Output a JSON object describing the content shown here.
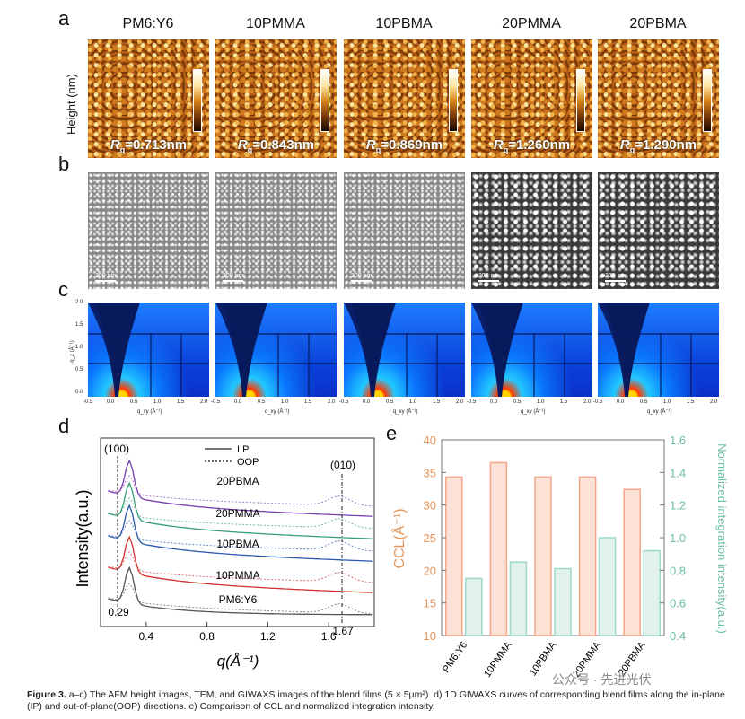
{
  "panel_a": {
    "letter": "a",
    "ylabel": "Height (nm)",
    "columns": [
      {
        "title": "PM6:Y6",
        "rq": "0.713nm"
      },
      {
        "title": "10PMMA",
        "rq": "0.843nm"
      },
      {
        "title": "10PBMA",
        "rq": "0.869nm"
      },
      {
        "title": "20PMMA",
        "rq": "1.260nm"
      },
      {
        "title": "20PBMA",
        "rq": "1.290nm"
      }
    ],
    "rq_symbol": "R",
    "rq_sub": "q",
    "rq_eq": "="
  },
  "panel_b": {
    "letter": "b",
    "scale_label": "200 nm"
  },
  "panel_c": {
    "letter": "c",
    "ylabel": "q_z (Å⁻¹)",
    "xlabel": "q_xy (Å⁻¹)",
    "yticks": [
      "2.0",
      "1.5",
      "1.0",
      "0.5",
      "0.0"
    ],
    "xticks": [
      "-0.5",
      "0.0",
      "0.5",
      "1.0",
      "1.5",
      "2.0"
    ]
  },
  "chart_data": [
    {
      "type": "line",
      "panel": "d",
      "xlabel": "q(Å⁻¹)",
      "ylabel": "Intensity(a.u.)",
      "xlim": [
        0.1,
        1.9
      ],
      "xticks": [
        "0.4",
        "0.8",
        "1.2",
        "1.6"
      ],
      "legend": [
        "I P",
        "OOP"
      ],
      "annotations": [
        "(100)",
        "(010)",
        "0.29",
        "1.67"
      ],
      "series": [
        {
          "name": "20PBMA",
          "color": "#7a3fb0"
        },
        {
          "name": "20PMMA",
          "color": "#35a070"
        },
        {
          "name": "10PBMA",
          "color": "#2a58b0"
        },
        {
          "name": "10PMMA",
          "color": "#d23030"
        },
        {
          "name": "PM6:Y6",
          "color": "#555555"
        }
      ]
    },
    {
      "type": "bar",
      "panel": "e",
      "categories": [
        "PM6:Y6",
        "10PMMA",
        "10PBMA",
        "20PMMA",
        "20PBMA"
      ],
      "series": [
        {
          "name": "CCL",
          "axis": "left",
          "color": "#f4a58a",
          "values": [
            34.3,
            36.5,
            34.3,
            34.3,
            32.4
          ]
        },
        {
          "name": "Normalized integration intensity",
          "axis": "right",
          "color": "#9fd8c8",
          "values": [
            0.75,
            0.85,
            0.81,
            1.0,
            0.92
          ]
        }
      ],
      "ylabel": "CCL(Å⁻¹)",
      "ylabel_right": "Normalized integration intensity(a.u.)",
      "ylim": [
        10,
        40
      ],
      "ylim_right": [
        0.4,
        1.6
      ],
      "yticks": [
        "10",
        "15",
        "20",
        "25",
        "30",
        "35",
        "40"
      ],
      "yticks_right": [
        "0.4",
        "0.6",
        "0.8",
        "1.0",
        "1.2",
        "1.4",
        "1.6"
      ],
      "left_color": "#e8955a",
      "right_color": "#6cbfa6"
    }
  ],
  "panel_d_letter": "d",
  "panel_e_letter": "e",
  "caption": {
    "label": "Figure 3.",
    "text": "a–c) The AFM height images, TEM, and GIWAXS images of the blend films (5 × 5μm²). d) 1D GIWAXS curves of corresponding blend films along the in-plane (IP) and out-of-plane(OOP) directions. e) Comparison of CCL and normalized integration intensity."
  },
  "watermark": "公众号 · 先进光伏"
}
